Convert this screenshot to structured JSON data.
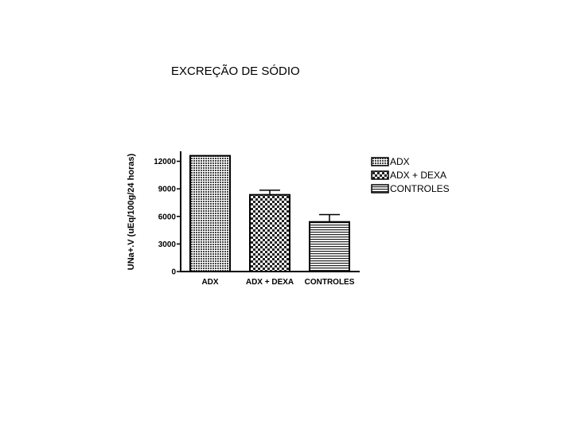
{
  "chart_data": {
    "type": "bar",
    "title": "EXCREÇÃO DE SÓDIO",
    "y_label": "UNa+.V (uEq/100g/24 horas)",
    "categories": [
      "ADX",
      "ADX + DEXA",
      "CONTROLES"
    ],
    "values": [
      12600,
      8350,
      5400
    ],
    "errors": [
      0,
      500,
      800
    ],
    "patterns": [
      "dots",
      "checker",
      "hlines"
    ],
    "ylim": [
      0,
      13000
    ],
    "yticks": [
      0,
      3000,
      6000,
      9000,
      12000
    ],
    "legend": "right"
  }
}
